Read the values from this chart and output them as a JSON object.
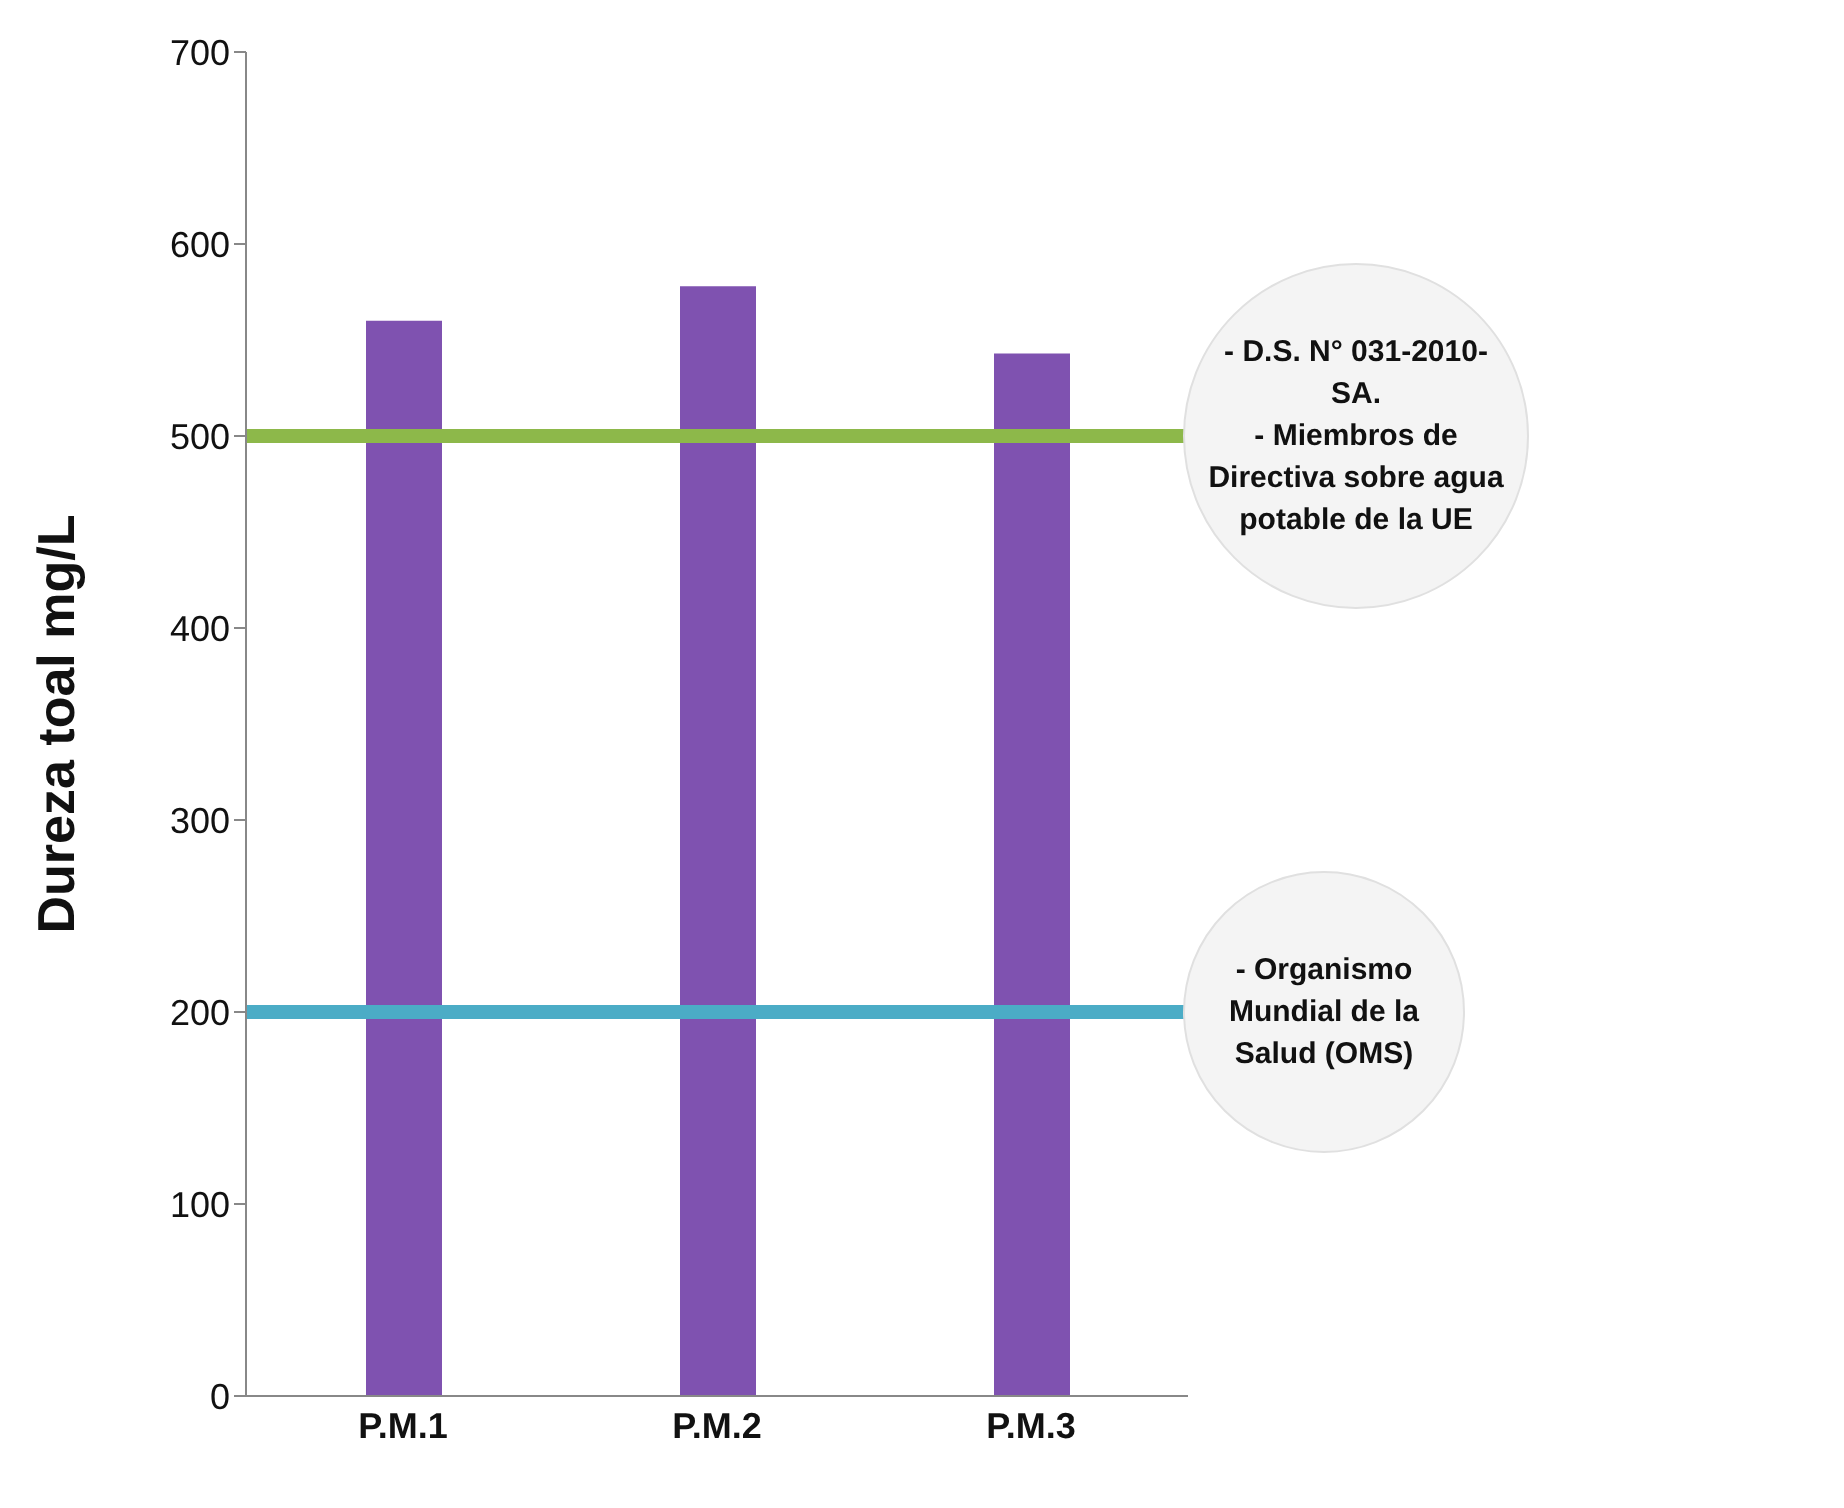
{
  "chart_data": {
    "type": "bar",
    "ylabel": "Dureza toal mg/L",
    "categories": [
      "P.M.1",
      "P.M.2",
      "P.M.3"
    ],
    "values": [
      560,
      578,
      543
    ],
    "color": "#7f52b0",
    "ylim": [
      0,
      700
    ],
    "yticks": [
      0,
      100,
      200,
      300,
      400,
      500,
      600,
      700
    ],
    "grid": false,
    "legend": false,
    "ref_lines": [
      {
        "axis": "y",
        "value": 500,
        "label": "- D.S. N° 031-2010-\nSA.\n- Miembros de\nDirectiva sobre agua\npotable de la UE",
        "color": "#8db84a"
      },
      {
        "axis": "y",
        "value": 200,
        "label": "- Organismo\nMundial de la\nSalud (OMS)",
        "color": "#4bacc6"
      }
    ]
  }
}
